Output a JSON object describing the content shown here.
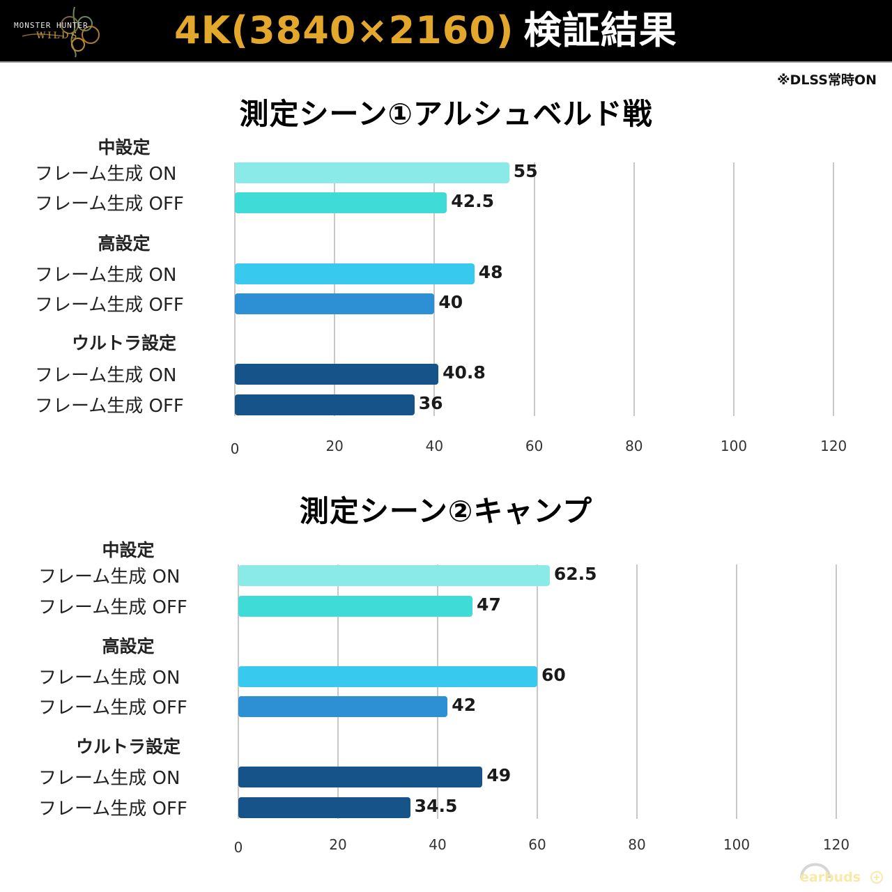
{
  "header": {
    "logo_line1": "MONSTER HUNTER",
    "logo_line2": "WILDS",
    "title_gold": "4K(3840×2160)",
    "title_white": "検証結果",
    "title_gold_color": "#e3a82b"
  },
  "note": "※DLSS常時ON",
  "watermark": "earbuds",
  "colors": {
    "medium_on": "#8aeae8",
    "medium_off": "#3fdbd7",
    "high_on": "#38c9ef",
    "high_off": "#2e90d4",
    "ultra_on": "#165389",
    "ultra_off": "#165389"
  },
  "chart_data": [
    {
      "type": "bar",
      "orientation": "horizontal",
      "title": "測定シーン①アルシュベルド戦",
      "groups": [
        "中設定",
        "高設定",
        "ウルトラ設定"
      ],
      "categories": [
        "フレーム生成  ON",
        "フレーム生成  OFF",
        "フレーム生成  ON",
        "フレーム生成  OFF",
        "フレーム生成  ON",
        "フレーム生成  OFF"
      ],
      "values": [
        55,
        42.5,
        48,
        40,
        40.8,
        36
      ],
      "value_labels": [
        "55",
        "42.5",
        "48",
        "40",
        "40.8",
        "36"
      ],
      "xlim": [
        0,
        120
      ],
      "xticks": [
        "0",
        "20",
        "40",
        "60",
        "80",
        "100",
        "120"
      ],
      "grid": true,
      "xlabel": "",
      "ylabel": ""
    },
    {
      "type": "bar",
      "orientation": "horizontal",
      "title": "測定シーン②キャンプ",
      "groups": [
        "中設定",
        "高設定",
        "ウルトラ設定"
      ],
      "categories": [
        "フレーム生成  ON",
        "フレーム生成  OFF",
        "フレーム生成  ON",
        "フレーム生成  OFF",
        "フレーム生成  ON",
        "フレーム生成  OFF"
      ],
      "values": [
        62.5,
        47,
        60,
        42,
        49,
        34.5
      ],
      "value_labels": [
        "62.5",
        "47",
        "60",
        "42",
        "49",
        "34.5"
      ],
      "xlim": [
        0,
        120
      ],
      "xticks": [
        "0",
        "20",
        "40",
        "60",
        "80",
        "100",
        "120"
      ],
      "grid": true,
      "xlabel": "",
      "ylabel": ""
    }
  ]
}
